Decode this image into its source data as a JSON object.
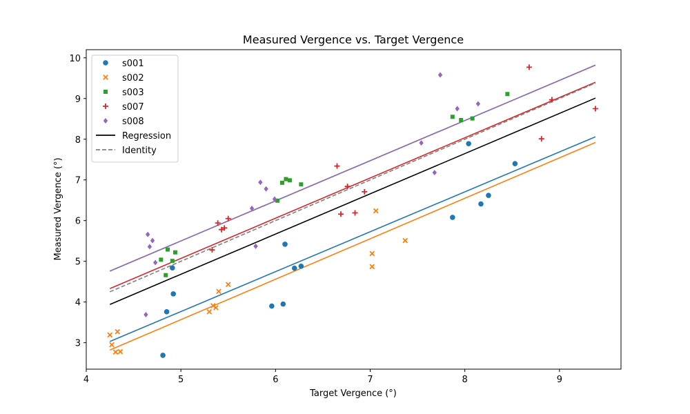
{
  "chart_data": {
    "type": "scatter",
    "title": "Measured Vergence vs. Target Vergence",
    "xlabel": "Target Vergence (°)",
    "ylabel": "Measured Vergence (°)",
    "xlim": [
      4.0,
      9.65
    ],
    "ylim": [
      2.35,
      10.2
    ],
    "xticks": [
      4,
      5,
      6,
      7,
      8,
      9
    ],
    "yticks": [
      3,
      4,
      5,
      6,
      7,
      8,
      9,
      10
    ],
    "grid": false,
    "legend": {
      "position": "top-left",
      "entries": [
        "s001",
        "s002",
        "s003",
        "s007",
        "s008",
        "Regression",
        "Identity"
      ]
    },
    "series": [
      {
        "name": "s001",
        "marker": "circle",
        "color": "#1f77b4",
        "points": [
          [
            4.81,
            2.69
          ],
          [
            4.85,
            3.76
          ],
          [
            4.91,
            4.84
          ],
          [
            4.92,
            4.2
          ],
          [
            5.96,
            3.9
          ],
          [
            6.08,
            3.95
          ],
          [
            6.1,
            5.42
          ],
          [
            6.2,
            4.83
          ],
          [
            6.27,
            4.88
          ],
          [
            7.87,
            6.08
          ],
          [
            8.04,
            7.89
          ],
          [
            8.17,
            6.41
          ],
          [
            8.25,
            6.62
          ],
          [
            8.53,
            7.4
          ]
        ],
        "fit": [
          [
            4.25,
            3.03
          ],
          [
            9.38,
            8.06
          ]
        ]
      },
      {
        "name": "s002",
        "marker": "x",
        "color": "#ff7f0e",
        "points": [
          [
            4.25,
            3.19
          ],
          [
            4.27,
            2.95
          ],
          [
            4.31,
            2.77
          ],
          [
            4.33,
            3.27
          ],
          [
            4.36,
            2.78
          ],
          [
            5.3,
            3.76
          ],
          [
            5.34,
            3.91
          ],
          [
            5.37,
            3.86
          ],
          [
            5.4,
            4.26
          ],
          [
            5.5,
            4.43
          ],
          [
            7.02,
            5.19
          ],
          [
            7.02,
            4.87
          ],
          [
            7.06,
            6.24
          ],
          [
            7.37,
            5.51
          ]
        ],
        "fit": [
          [
            4.25,
            2.82
          ],
          [
            9.38,
            7.92
          ]
        ]
      },
      {
        "name": "s003",
        "marker": "square",
        "color": "#2ca02c",
        "points": [
          [
            4.79,
            5.04
          ],
          [
            4.84,
            4.66
          ],
          [
            4.86,
            5.29
          ],
          [
            4.91,
            5.01
          ],
          [
            4.94,
            5.22
          ],
          [
            6.02,
            6.49
          ],
          [
            6.07,
            6.93
          ],
          [
            6.11,
            7.02
          ],
          [
            6.15,
            6.99
          ],
          [
            6.27,
            6.89
          ],
          [
            7.87,
            8.55
          ],
          [
            7.96,
            8.47
          ],
          [
            8.08,
            8.51
          ],
          [
            8.45,
            9.11
          ]
        ],
        "fit": [
          [
            4.25,
            4.76
          ],
          [
            9.38,
            9.82
          ]
        ]
      },
      {
        "name": "s007",
        "marker": "plus",
        "color": "#d62728",
        "points": [
          [
            5.33,
            5.28
          ],
          [
            5.39,
            5.94
          ],
          [
            5.43,
            5.78
          ],
          [
            5.46,
            5.82
          ],
          [
            5.5,
            6.05
          ],
          [
            6.65,
            7.34
          ],
          [
            6.69,
            6.16
          ],
          [
            6.76,
            6.84
          ],
          [
            6.84,
            6.19
          ],
          [
            6.94,
            6.71
          ],
          [
            8.68,
            9.77
          ],
          [
            8.81,
            8.01
          ],
          [
            8.92,
            8.97
          ],
          [
            9.38,
            8.75
          ]
        ],
        "fit": [
          [
            4.25,
            4.33
          ],
          [
            9.38,
            9.4
          ]
        ]
      },
      {
        "name": "s008",
        "marker": "diamond",
        "color": "#9467bd",
        "points": [
          [
            4.63,
            3.69
          ],
          [
            4.65,
            5.66
          ],
          [
            4.67,
            5.36
          ],
          [
            4.7,
            5.51
          ],
          [
            4.73,
            4.97
          ],
          [
            5.75,
            6.3
          ],
          [
            5.79,
            5.37
          ],
          [
            5.84,
            6.94
          ],
          [
            5.9,
            6.78
          ],
          [
            5.99,
            6.53
          ],
          [
            7.54,
            7.91
          ],
          [
            7.68,
            7.18
          ],
          [
            7.74,
            9.58
          ],
          [
            7.92,
            8.75
          ],
          [
            8.14,
            8.87
          ]
        ],
        "fit": [
          [
            4.25,
            4.76
          ],
          [
            9.38,
            9.82
          ]
        ]
      }
    ],
    "lines": [
      {
        "name": "Regression",
        "color": "#000000",
        "style": "solid",
        "points": [
          [
            4.25,
            3.94
          ],
          [
            9.38,
            9.01
          ]
        ]
      },
      {
        "name": "Identity",
        "color": "#808080",
        "style": "dashed",
        "points": [
          [
            4.25,
            4.25
          ],
          [
            9.38,
            9.38
          ]
        ]
      }
    ]
  }
}
